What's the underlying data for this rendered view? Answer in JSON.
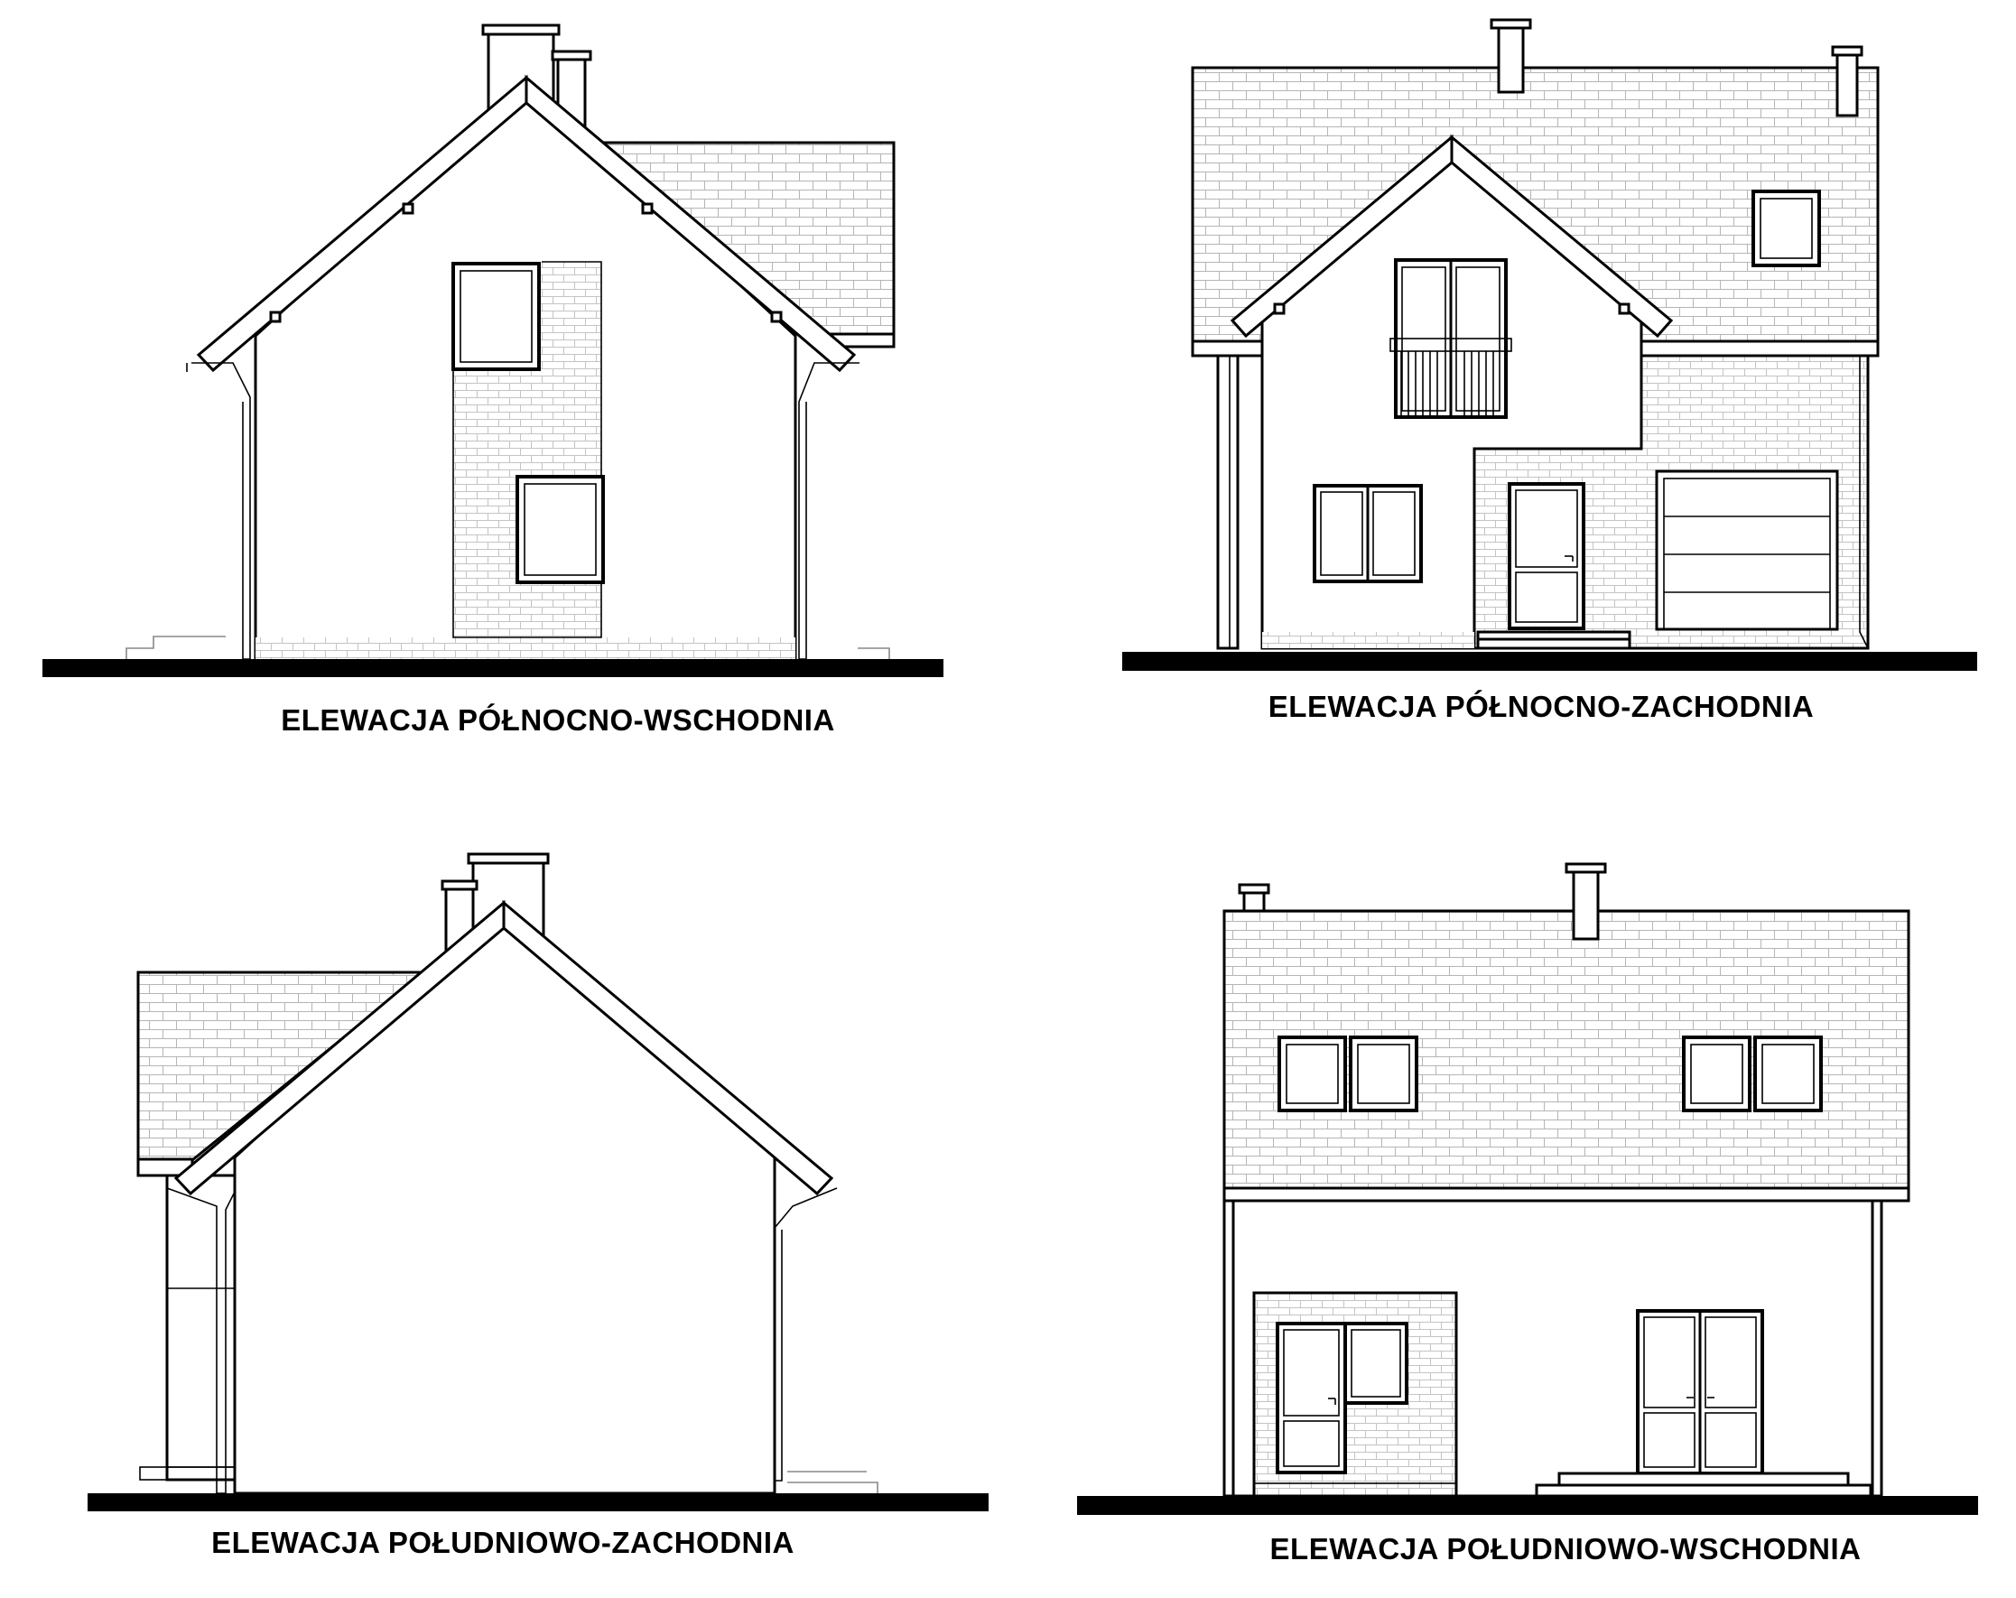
{
  "drawing_set": {
    "elevations": [
      {
        "id": "ne",
        "caption": "ELEWACJA PÓŁNOCNO-WSCHODNIA"
      },
      {
        "id": "nw",
        "caption": "ELEWACJA PÓŁNOCNO-ZACHODNIA"
      },
      {
        "id": "sw",
        "caption": "ELEWACJA POŁUDNIOWO-ZACHODNIA"
      },
      {
        "id": "se",
        "caption": "ELEWACJA POŁUDNIOWO-WSCHODNIA"
      }
    ]
  },
  "patterns": [
    "roof-tile-hatch",
    "brick-cladding-hatch"
  ]
}
